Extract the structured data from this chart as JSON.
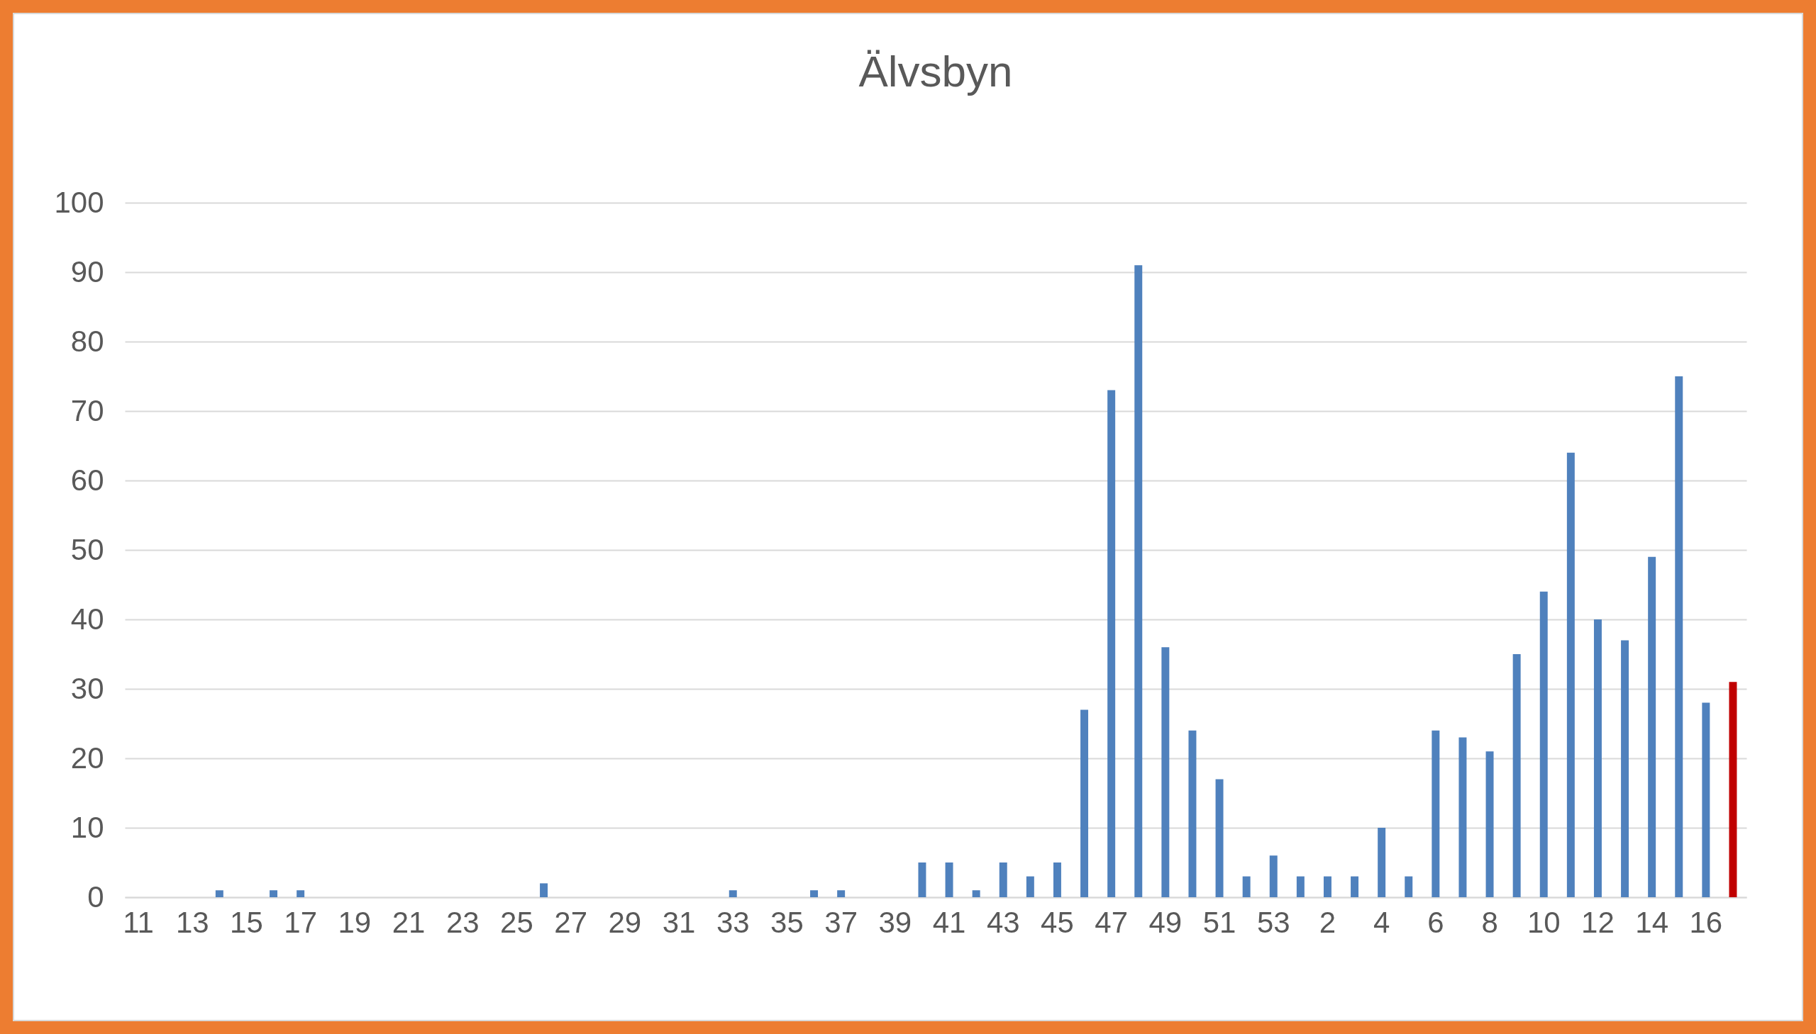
{
  "chart_data": {
    "type": "bar",
    "title": "Älvsbyn",
    "categories": [
      "11",
      null,
      "13",
      null,
      "15",
      null,
      "17",
      null,
      "19",
      null,
      "21",
      null,
      "23",
      null,
      "25",
      null,
      "27",
      null,
      "29",
      null,
      "31",
      null,
      "33",
      null,
      "35",
      null,
      "37",
      null,
      "39",
      null,
      "41",
      null,
      "43",
      null,
      "45",
      null,
      "47",
      null,
      "49",
      null,
      "51",
      null,
      "53",
      null,
      "2",
      null,
      "4",
      null,
      "6",
      null,
      "8",
      null,
      "10",
      null,
      "12",
      null,
      "14",
      null,
      "16",
      null
    ],
    "values": [
      0,
      0,
      0,
      1,
      0,
      1,
      1,
      0,
      0,
      0,
      0,
      0,
      0,
      0,
      0,
      2,
      0,
      0,
      0,
      0,
      0,
      0,
      1,
      0,
      0,
      1,
      1,
      0,
      0,
      5,
      5,
      1,
      5,
      3,
      5,
      27,
      73,
      91,
      36,
      24,
      17,
      3,
      6,
      3,
      3,
      3,
      10,
      3,
      24,
      23,
      21,
      35,
      44,
      64,
      40,
      37,
      49,
      75,
      28,
      31
    ],
    "colors": [
      "#4f81bd",
      "#4f81bd",
      "#4f81bd",
      "#4f81bd",
      "#4f81bd",
      "#4f81bd",
      "#4f81bd",
      "#4f81bd",
      "#4f81bd",
      "#4f81bd",
      "#4f81bd",
      "#4f81bd",
      "#4f81bd",
      "#4f81bd",
      "#4f81bd",
      "#4f81bd",
      "#4f81bd",
      "#4f81bd",
      "#4f81bd",
      "#4f81bd",
      "#4f81bd",
      "#4f81bd",
      "#4f81bd",
      "#4f81bd",
      "#4f81bd",
      "#4f81bd",
      "#4f81bd",
      "#4f81bd",
      "#4f81bd",
      "#4f81bd",
      "#4f81bd",
      "#4f81bd",
      "#4f81bd",
      "#4f81bd",
      "#4f81bd",
      "#4f81bd",
      "#4f81bd",
      "#4f81bd",
      "#4f81bd",
      "#4f81bd",
      "#4f81bd",
      "#4f81bd",
      "#4f81bd",
      "#4f81bd",
      "#4f81bd",
      "#4f81bd",
      "#4f81bd",
      "#4f81bd",
      "#4f81bd",
      "#4f81bd",
      "#4f81bd",
      "#4f81bd",
      "#4f81bd",
      "#4f81bd",
      "#4f81bd",
      "#4f81bd",
      "#4f81bd",
      "#4f81bd",
      "#4f81bd",
      "#c00000"
    ],
    "ylim": [
      0,
      100
    ],
    "yticks": [
      0,
      10,
      20,
      30,
      40,
      50,
      60,
      70,
      80,
      90,
      100
    ],
    "grid": "y"
  }
}
